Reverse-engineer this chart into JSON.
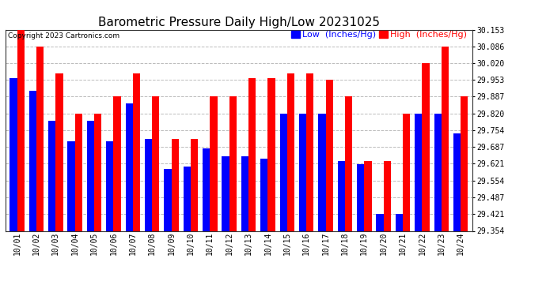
{
  "title": "Barometric Pressure Daily High/Low 20231025",
  "copyright": "Copyright 2023 Cartronics.com",
  "legend_low": "Low  (Inches/Hg)",
  "legend_high": "High  (Inches/Hg)",
  "categories": [
    "10/01",
    "10/02",
    "10/03",
    "10/04",
    "10/05",
    "10/06",
    "10/07",
    "10/08",
    "10/09",
    "10/10",
    "10/11",
    "10/12",
    "10/13",
    "10/14",
    "10/15",
    "10/16",
    "10/17",
    "10/18",
    "10/19",
    "10/20",
    "10/21",
    "10/22",
    "10/23",
    "10/24"
  ],
  "low_values": [
    29.96,
    29.91,
    29.79,
    29.71,
    29.79,
    29.71,
    29.86,
    29.72,
    29.6,
    29.61,
    29.68,
    29.65,
    29.65,
    29.64,
    29.82,
    29.82,
    29.82,
    29.63,
    29.62,
    29.42,
    29.42,
    29.82,
    29.82,
    29.74
  ],
  "high_values": [
    30.153,
    30.086,
    29.98,
    29.82,
    29.82,
    29.887,
    29.98,
    29.887,
    29.72,
    29.72,
    29.887,
    29.887,
    29.96,
    29.96,
    29.98,
    29.98,
    29.953,
    29.887,
    29.63,
    29.63,
    29.82,
    30.02,
    30.086,
    29.887
  ],
  "ymin": 29.354,
  "ymax": 30.153,
  "yticks": [
    29.354,
    29.421,
    29.487,
    29.554,
    29.621,
    29.687,
    29.754,
    29.82,
    29.887,
    29.953,
    30.02,
    30.086,
    30.153
  ],
  "bar_width": 0.38,
  "low_color": "#0000ff",
  "high_color": "#ff0000",
  "bg_color": "#ffffff",
  "grid_color": "#bbbbbb",
  "title_fontsize": 11,
  "tick_fontsize": 7,
  "legend_fontsize": 8,
  "copyright_fontsize": 6.5
}
